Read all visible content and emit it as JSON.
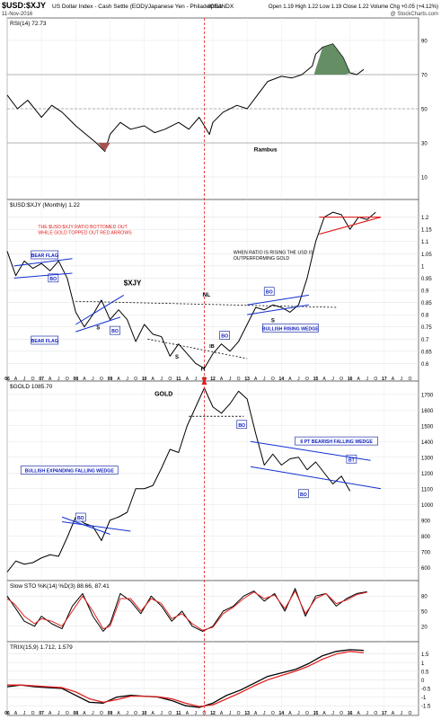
{
  "header": {
    "symbol": "$USD:$XJY",
    "description": "US Dollar Index - Cash Settle (EOD)/Japanese Yen - Philadelphia",
    "exchange": "ICE/INDX",
    "date": "11-Nov-2016",
    "quote": "Open 1.19  High 1.22  Low 1.19  Close 1.22  Volume  Chg +0.05 (+4.12%)",
    "watermark": "@ StockCharts.com"
  },
  "chart_data": [
    {
      "type": "line",
      "panel": "rsi",
      "title": "RSI(14) 72.73",
      "ylim": [
        0,
        100
      ],
      "yticks": [
        10,
        30,
        50,
        70,
        90
      ],
      "reference_lines": [
        30,
        50,
        70
      ],
      "annotation": "Rambus",
      "x": [
        2006.0,
        2006.3,
        2006.6,
        2007.0,
        2007.3,
        2007.6,
        2008.0,
        2008.3,
        2008.6,
        2008.85,
        2009.0,
        2009.3,
        2009.6,
        2010.0,
        2010.3,
        2010.6,
        2011.0,
        2011.3,
        2011.6,
        2011.9,
        2012.0,
        2012.3,
        2012.7,
        2013.0,
        2013.3,
        2013.6,
        2014.0,
        2014.3,
        2014.6,
        2014.9,
        2015.0,
        2015.2,
        2015.5,
        2015.8,
        2016.0,
        2016.2,
        2016.4
      ],
      "values": [
        58,
        50,
        55,
        45,
        52,
        48,
        40,
        35,
        30,
        25,
        35,
        42,
        38,
        40,
        36,
        38,
        42,
        38,
        45,
        35,
        42,
        48,
        52,
        50,
        58,
        66,
        69,
        68,
        70,
        75,
        82,
        86,
        88,
        80,
        71,
        70,
        73
      ]
    },
    {
      "type": "line",
      "panel": "ratio",
      "title": "$USD:$XJY (Monthly) 1.22",
      "ylim": [
        0.55,
        1.25
      ],
      "yticks": [
        0.6,
        0.65,
        0.7,
        0.75,
        0.8,
        0.85,
        0.9,
        0.95,
        1.0,
        1.05,
        1.1,
        1.15,
        1.2
      ],
      "x_ticks": [
        "06",
        "A",
        "J",
        "O",
        "07",
        "A",
        "J",
        "O",
        "08",
        "A",
        "J",
        "O",
        "09",
        "A",
        "J",
        "O",
        "10",
        "A",
        "J",
        "O",
        "11",
        "A",
        "J",
        "O",
        "12",
        "A",
        "J",
        "O",
        "13",
        "A",
        "J",
        "O",
        "14",
        "A",
        "J",
        "O",
        "15",
        "A",
        "J",
        "O",
        "16",
        "A",
        "J",
        "O",
        "17",
        "A",
        "J",
        "O"
      ],
      "x": [
        2006.0,
        2006.25,
        2006.5,
        2006.75,
        2007.0,
        2007.25,
        2007.5,
        2007.75,
        2008.0,
        2008.25,
        2008.5,
        2008.75,
        2009.0,
        2009.25,
        2009.5,
        2009.75,
        2010.0,
        2010.25,
        2010.5,
        2010.75,
        2011.0,
        2011.25,
        2011.5,
        2011.75,
        2012.0,
        2012.25,
        2012.5,
        2012.75,
        2013.0,
        2013.25,
        2013.5,
        2013.75,
        2014.0,
        2014.25,
        2014.5,
        2014.75,
        2015.0,
        2015.25,
        2015.5,
        2015.75,
        2016.0,
        2016.25,
        2016.5,
        2016.75
      ],
      "values": [
        1.06,
        0.96,
        1.02,
        0.99,
        1.01,
        0.98,
        1.02,
        0.95,
        0.81,
        0.75,
        0.8,
        0.86,
        0.78,
        0.82,
        0.78,
        0.69,
        0.76,
        0.72,
        0.71,
        0.63,
        0.68,
        0.64,
        0.6,
        0.58,
        0.64,
        0.68,
        0.65,
        0.69,
        0.76,
        0.83,
        0.82,
        0.84,
        0.83,
        0.81,
        0.84,
        0.95,
        1.1,
        1.2,
        1.22,
        1.21,
        1.15,
        1.2,
        1.19,
        1.22
      ],
      "annotations": [
        "THE $USD:$XJY RATIO BOTTOMED OUT",
        "WHILE GOLD TOPPED OUT RED ARROWS",
        "WHEN RATIO IS RISING THE USD IS",
        "OUTPERFORMING GOLD",
        "$XJY",
        "NL",
        "BEAR FLAG",
        "BEAR FLAG",
        "BULLISH RISING WEDGE",
        "S",
        "S",
        "H",
        "IB",
        "S",
        "BO",
        "BO",
        "BO",
        "BO"
      ]
    },
    {
      "type": "line",
      "panel": "gold",
      "title": "$GOLD 1085.70",
      "ylim": [
        550,
        1750
      ],
      "yticks": [
        600,
        700,
        800,
        900,
        1000,
        1100,
        1200,
        1300,
        1400,
        1500,
        1600,
        1700
      ],
      "x": [
        2006.0,
        2006.25,
        2006.5,
        2006.75,
        2007.0,
        2007.25,
        2007.5,
        2007.75,
        2008.0,
        2008.25,
        2008.5,
        2008.75,
        2009.0,
        2009.25,
        2009.5,
        2009.75,
        2010.0,
        2010.25,
        2010.5,
        2010.75,
        2011.0,
        2011.25,
        2011.5,
        2011.75,
        2012.0,
        2012.25,
        2012.5,
        2012.75,
        2013.0,
        2013.25,
        2013.5,
        2013.75,
        2014.0,
        2014.25,
        2014.5,
        2014.75,
        2015.0,
        2015.25,
        2015.5,
        2015.75,
        2016.0
      ],
      "values": [
        570,
        640,
        620,
        630,
        660,
        680,
        670,
        790,
        920,
        880,
        860,
        770,
        900,
        920,
        950,
        1100,
        1100,
        1120,
        1230,
        1350,
        1330,
        1500,
        1620,
        1740,
        1620,
        1580,
        1640,
        1720,
        1670,
        1450,
        1250,
        1320,
        1250,
        1290,
        1300,
        1220,
        1270,
        1200,
        1130,
        1180,
        1085
      ],
      "annotations": [
        "GOLD",
        "BULLISH EXPANDING FALLING WEDGE",
        "6 PT BEARISH FALLING WEDGE",
        "BO",
        "BO",
        "BO",
        "BT"
      ]
    },
    {
      "type": "line",
      "panel": "sto",
      "title": "Slow STO %K(14) %D(3) 88.66, 87.41",
      "ylim": [
        0,
        100
      ],
      "yticks": [
        20,
        50,
        80
      ],
      "series": [
        {
          "name": "%K",
          "color": "#000000",
          "x": [
            2006.0,
            2006.2,
            2006.5,
            2006.8,
            2007.0,
            2007.3,
            2007.6,
            2007.9,
            2008.2,
            2008.5,
            2008.8,
            2009.0,
            2009.3,
            2009.6,
            2009.9,
            2010.2,
            2010.5,
            2010.8,
            2011.1,
            2011.4,
            2011.7,
            2012.0,
            2012.3,
            2012.6,
            2012.9,
            2013.2,
            2013.5,
            2013.8,
            2014.1,
            2014.4,
            2014.7,
            2015.0,
            2015.3,
            2015.6,
            2015.9,
            2016.2,
            2016.5
          ],
          "values": [
            80,
            60,
            30,
            20,
            40,
            25,
            15,
            60,
            85,
            40,
            10,
            25,
            85,
            70,
            45,
            80,
            60,
            30,
            50,
            20,
            10,
            20,
            50,
            60,
            80,
            90,
            70,
            85,
            50,
            95,
            40,
            80,
            85,
            60,
            75,
            85,
            88.66
          ]
        },
        {
          "name": "%D",
          "color": "#e02020",
          "x": [
            2006.0,
            2006.2,
            2006.5,
            2006.8,
            2007.0,
            2007.3,
            2007.6,
            2007.9,
            2008.2,
            2008.5,
            2008.8,
            2009.0,
            2009.3,
            2009.6,
            2009.9,
            2010.2,
            2010.5,
            2010.8,
            2011.1,
            2011.4,
            2011.7,
            2012.0,
            2012.3,
            2012.6,
            2012.9,
            2013.2,
            2013.5,
            2013.8,
            2014.1,
            2014.4,
            2014.7,
            2015.0,
            2015.3,
            2015.6,
            2015.9,
            2016.2,
            2016.5
          ],
          "values": [
            75,
            65,
            40,
            25,
            35,
            30,
            20,
            50,
            80,
            50,
            15,
            20,
            75,
            75,
            50,
            75,
            65,
            35,
            45,
            25,
            12,
            18,
            45,
            58,
            75,
            88,
            75,
            82,
            55,
            90,
            45,
            75,
            85,
            65,
            72,
            83,
            87.41
          ]
        }
      ]
    },
    {
      "type": "line",
      "panel": "trix",
      "title": "TRIX(15,9) 1.712, 1.579",
      "ylim": [
        -1.75,
        1.9
      ],
      "yticks": [
        -1.5,
        -1.0,
        -0.5,
        0.0,
        0.5,
        1.0,
        1.5
      ],
      "series": [
        {
          "name": "TRIX",
          "color": "#000000",
          "x": [
            2006.0,
            2006.4,
            2006.8,
            2007.2,
            2007.6,
            2008.0,
            2008.4,
            2008.8,
            2009.2,
            2009.6,
            2010.0,
            2010.4,
            2010.8,
            2011.2,
            2011.6,
            2012.0,
            2012.4,
            2012.8,
            2013.2,
            2013.6,
            2014.0,
            2014.4,
            2014.8,
            2015.2,
            2015.6,
            2016.0,
            2016.4
          ],
          "values": [
            -0.4,
            -0.3,
            -0.4,
            -0.45,
            -0.5,
            -0.9,
            -1.3,
            -1.35,
            -1.0,
            -0.9,
            -0.95,
            -1.0,
            -1.2,
            -1.5,
            -1.6,
            -1.35,
            -0.9,
            -0.6,
            -0.2,
            0.2,
            0.4,
            0.6,
            0.95,
            1.4,
            1.65,
            1.75,
            1.712
          ]
        },
        {
          "name": "Signal",
          "color": "#e02020",
          "x": [
            2006.0,
            2006.4,
            2006.8,
            2007.2,
            2007.6,
            2008.0,
            2008.4,
            2008.8,
            2009.2,
            2009.6,
            2010.0,
            2010.4,
            2010.8,
            2011.2,
            2011.6,
            2012.0,
            2012.4,
            2012.8,
            2013.2,
            2013.6,
            2014.0,
            2014.4,
            2014.8,
            2015.2,
            2015.6,
            2016.0,
            2016.4
          ],
          "values": [
            -0.3,
            -0.3,
            -0.35,
            -0.4,
            -0.45,
            -0.7,
            -1.1,
            -1.3,
            -1.15,
            -0.95,
            -0.95,
            -0.98,
            -1.1,
            -1.35,
            -1.55,
            -1.45,
            -1.1,
            -0.75,
            -0.35,
            0.0,
            0.25,
            0.5,
            0.8,
            1.2,
            1.5,
            1.65,
            1.579
          ]
        }
      ]
    }
  ]
}
